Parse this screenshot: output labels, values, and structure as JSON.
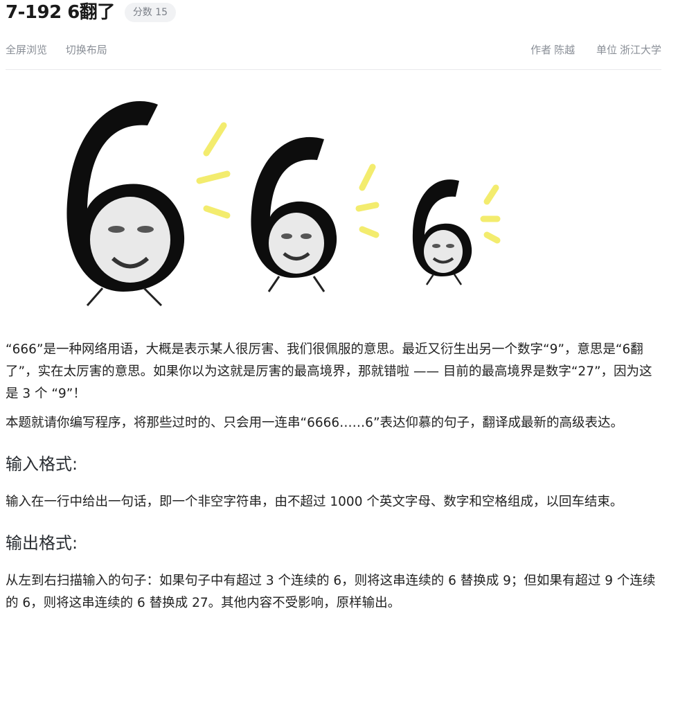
{
  "header": {
    "title": "7-192 6翻了",
    "score_badge": "分数 15"
  },
  "meta": {
    "fullscreen": "全屏浏览",
    "switch_layout": "切换布局",
    "author_label": "作者",
    "author": "陈越",
    "unit_label": "单位",
    "unit": "浙江大学"
  },
  "description": {
    "para1": "“666”是一种网络用语，大概是表示某人很厉害、我们很佩服的意思。最近又衍生出另一个数字“9”，意思是“6翻了”，实在太厉害的意思。如果你以为这就是厉害的最高境界，那就错啦 —— 目前的最高境界是数字“27”，因为这是 3 个 “9”！",
    "para2": "本题就请你编写程序，将那些过时的、只会用一连串“6666……6”表达仰慕的句子，翻译成最新的高级表达。"
  },
  "input_section": {
    "heading": "输入格式:",
    "body": "输入在一行中给出一句话，即一个非空字符串，由不超过 1000 个英文字母、数字和空格组成，以回车结束。"
  },
  "output_section": {
    "heading": "输出格式:",
    "body": "从左到右扫描输入的句子：如果句子中有超过 3 个连续的 6，则将这串连续的 6 替换成 9；但如果有超过 9 个连续的 6，则将这串连续的 6 替换成 27。其他内容不受影响，原样输出。"
  }
}
